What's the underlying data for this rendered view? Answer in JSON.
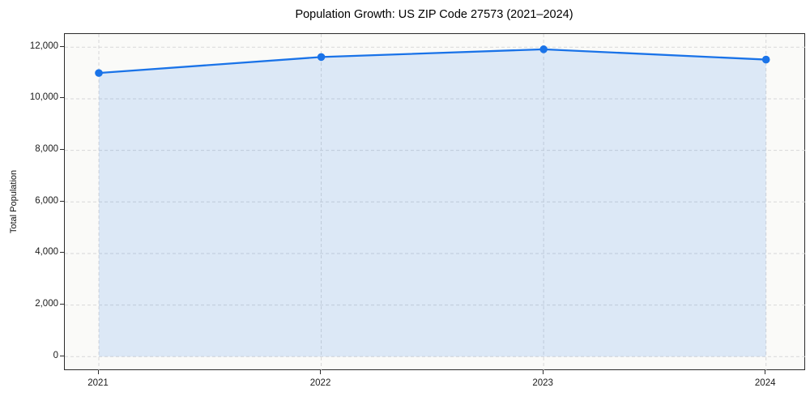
{
  "figure": {
    "background": "#ffffff"
  },
  "chart_data": {
    "type": "area",
    "title": "Population Growth: US ZIP Code 27573 (2021–2024)",
    "xlabel": "",
    "ylabel": "Total Population",
    "categories": [
      "2021",
      "2022",
      "2023",
      "2024"
    ],
    "series": [
      {
        "name": "Total Population",
        "values": [
          11000,
          11620,
          11920,
          11520
        ]
      }
    ],
    "ylim": [
      0,
      12000
    ],
    "yticks": {
      "values": [
        0,
        2000,
        4000,
        6000,
        8000,
        10000,
        12000
      ],
      "labels": [
        "0",
        "2,000",
        "4,000",
        "6,000",
        "8,000",
        "10,000",
        "12,000"
      ]
    },
    "grid": true,
    "grid_style": "dashed",
    "legend": false,
    "line_color": "#1a73e8",
    "marker_color": "#1a73e8",
    "fill_color": "rgba(26,115,232,0.13)",
    "grid_color": "#d7d7d7",
    "spine_color": "#2b2b2b",
    "text_color": "#1a1a1a"
  }
}
